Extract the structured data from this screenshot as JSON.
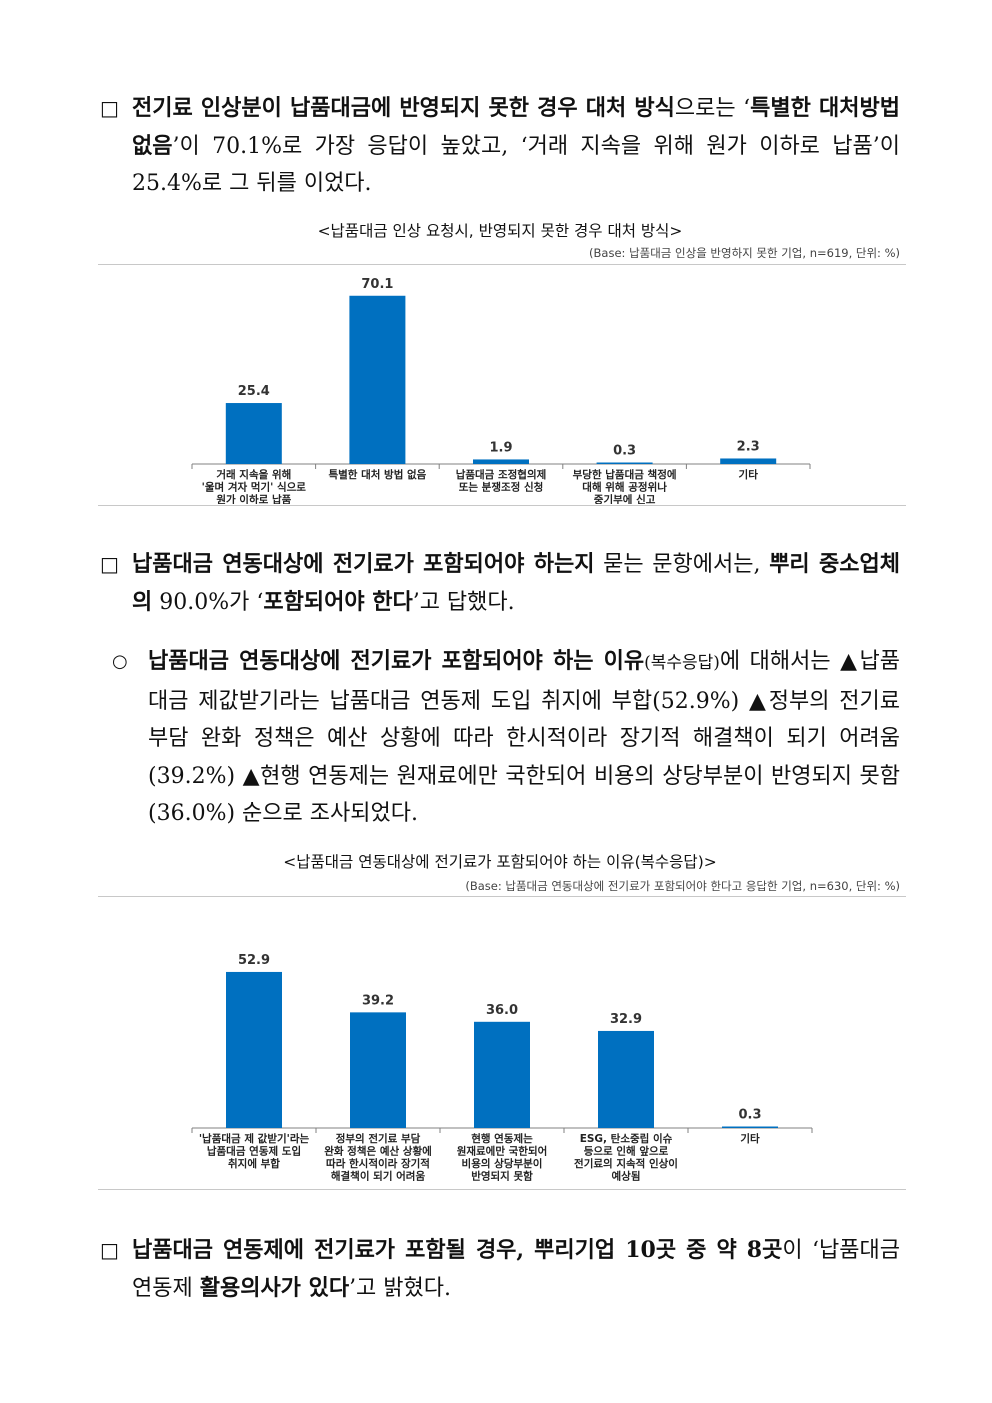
{
  "p1": {
    "marker": "□",
    "seg1": "전기료 인상분이 납품대금에 반영되지 못한 경우 대처 방식",
    "seg2": "으로는 ‘",
    "seg3": "특별한 대처방법 없음",
    "seg4": "’이 70.1%로 가장 응답이 높았고, ‘거래 지속을 위해 원가 이하로 납품’이 25.4%로 그 뒤를 이었다."
  },
  "chart1_caption": {
    "title": "<납품대금 인상 요청시, 반영되지 못한 경우 대처 방식>",
    "base": "(Base: 납품대금 인상을 반영하지 못한 기업, n=619, 단위: %)"
  },
  "p2": {
    "marker": "□",
    "seg1": "납품대금 연동대상에 전기료가 포함되어야 하는지",
    "seg2": " 묻는 문항에서는, ",
    "seg3": "뿌리 중소업체의",
    "seg4": " 90.0%가 ‘",
    "seg5": "포함되어야 한다",
    "seg6": "’고 답했다."
  },
  "p3": {
    "marker": "○",
    "seg1": "납품대금 연동대상에 전기료가 포함되어야 하는 이유",
    "seg2": "(복수응답)",
    "seg3": "에 대해서는 ▲납품대금 제값받기라는 납품대금 연동제 도입 취지에 부합(52.9%) ▲정부의 전기료 부담 완화 정책은 예산 상황에 따라 한시적이라 장기적 해결책이 되기 어려움(39.2%) ▲현행 연동제는 원재료에만 국한되어 비용의 상당부분이 반영되지 못함(36.0%) 순으로 조사되었다."
  },
  "chart2_caption": {
    "title": "<납품대금 연동대상에 전기료가 포함되어야 하는 이유(복수응답)>",
    "base": "(Base: 납품대금 연동대상에 전기료가 포함되어야 한다고 응답한 기업, n=630, 단위: %)"
  },
  "p4": {
    "marker": "□",
    "seg1": "납품대금 연동제에 전기료가 포함될 경우, 뿌리기업 10곳 중 약 8곳",
    "seg2": "이 ‘",
    "seg3": "납품대금 연동제 ",
    "seg4": "활용의사가 있다",
    "seg5": "’고 밝혔다."
  },
  "colors": {
    "bar": "#0070C0",
    "axis": "#808080"
  },
  "chart_data": [
    {
      "type": "bar",
      "title": "<납품대금 인상 요청시, 반영되지 못한 경우 대처 방식>",
      "ylim": [
        0,
        80
      ],
      "categories": [
        [
          "거래 지속을 위해",
          "'울며 겨자 먹기' 식으로",
          "원가 이하로 납품"
        ],
        [
          "특별한 대처 방법 없음"
        ],
        [
          "납품대금 조정협의제",
          "또는 분쟁조정 신청"
        ],
        [
          "부당한 납품대금 책정에",
          "대해 위해 공정위나",
          "중기부에 신고"
        ],
        [
          "기타"
        ]
      ],
      "values": [
        25.4,
        70.1,
        1.9,
        0.3,
        2.3
      ],
      "labels": [
        "25.4",
        "70.1",
        "1.9",
        "0.3",
        "2.3"
      ]
    },
    {
      "type": "bar",
      "title": "<납품대금 연동대상에 전기료가 포함되어야 하는 이유(복수응답)>",
      "ylim": [
        0,
        60
      ],
      "categories": [
        [
          "'납품대금 제 값받기'라는",
          "납품대금 연동제 도입",
          "취지에 부합"
        ],
        [
          "정부의 전기료 부담",
          "완화 정책은 예산 상황에",
          "따라 한시적이라 장기적",
          "해결책이 되기 어려움"
        ],
        [
          "현행 연동제는",
          "원재료에만 국한되어",
          "비용의 상당부분이",
          "반영되지 못함"
        ],
        [
          "ESG, 탄소중립 이슈",
          "등으로 인해 앞으로",
          "전기료의 지속적 인상이",
          "예상됨"
        ],
        [
          "기타"
        ]
      ],
      "values": [
        52.9,
        39.2,
        36.0,
        32.9,
        0.3
      ],
      "labels": [
        "52.9",
        "39.2",
        "36.0",
        "32.9",
        "0.3"
      ]
    }
  ]
}
